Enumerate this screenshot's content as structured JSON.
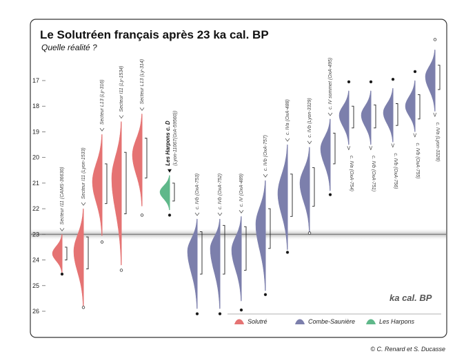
{
  "title": "Le Solutréen français après 23 ka cal. BP",
  "subtitle": "Quelle réalité ?",
  "credit": "© C. Renard et S. Ducasse",
  "chart_data": {
    "type": "area",
    "y_unit_label": "ka cal. BP",
    "y_ticks": [
      17,
      18,
      19,
      20,
      21,
      22,
      23,
      24,
      25,
      26
    ],
    "ylim": [
      16.2,
      26.4
    ],
    "y_inverted": true,
    "highlight_line": 23,
    "grid": false,
    "legend_position": "bottom-right",
    "groups": [
      {
        "key": "solutre",
        "name": "Solutré",
        "color": "#e57373"
      },
      {
        "key": "combe",
        "name": "Combe-Saunière",
        "color": "#7c7fac"
      },
      {
        "key": "harpons",
        "name": "Les Harpons",
        "color": "#5fb88a"
      }
    ],
    "samples": [
      {
        "label": "Secteur I11 (CAMS-36630)",
        "group": "solutre",
        "mode": 23.75,
        "top": 23.0,
        "bottom": 24.5,
        "range": [
          23.5,
          24.0
        ],
        "outlier": 24.55,
        "outlier_filled": true,
        "arrow": true
      },
      {
        "label": "Secteur I11 (Lyon-1533)",
        "group": "solutre",
        "mode": 23.65,
        "top": 22.0,
        "bottom": 25.8,
        "range": [
          23.1,
          24.35
        ],
        "outlier": 25.85,
        "outlier_filled": false,
        "arrow": true
      },
      {
        "label": "Secteur L13 (Ly-316)",
        "group": "solutre",
        "mode": 20.95,
        "top": 19.1,
        "bottom": 23.05,
        "range": [
          20.25,
          21.8
        ],
        "outlier": 23.3,
        "outlier_filled": false,
        "arrow": true
      },
      {
        "label": "Secteur I11 (Ly-1534)",
        "group": "solutre",
        "mode": 20.8,
        "top": 18.6,
        "bottom": 24.2,
        "range": [
          19.8,
          22.2
        ],
        "outlier": 24.4,
        "outlier_filled": false,
        "arrow": true
      },
      {
        "label": "Secteur L13 (Ly-314)",
        "group": "solutre",
        "mode": 19.9,
        "top": 18.3,
        "bottom": 21.9,
        "range": [
          19.25,
          20.8
        ],
        "outlier": 22.25,
        "outlier_filled": false,
        "arrow": true
      },
      {
        "label": "Les Harpons c. D",
        "sublabel": "(Lyon-11067(GrA-59560))",
        "group": "harpons",
        "mode": 21.35,
        "top": 20.7,
        "bottom": 22.05,
        "range": [
          21.0,
          21.7
        ],
        "outlier": 22.25,
        "outlier_filled": true,
        "arrow": true,
        "arrow_filled": true
      },
      {
        "label": "c. IVb (OxA-753)",
        "group": "combe",
        "mode": 23.65,
        "top": 22.4,
        "bottom": 25.9,
        "range": [
          22.9,
          24.55
        ],
        "outlier": 26.1,
        "outlier_filled": true,
        "arrow": true
      },
      {
        "label": "c. IVb (OxA-752)",
        "group": "combe",
        "mode": 23.55,
        "top": 22.4,
        "bottom": 25.9,
        "range": [
          22.65,
          24.55
        ],
        "outlier": 26.1,
        "outlier_filled": true,
        "arrow": true
      },
      {
        "label": "c. IV (OxA-489)",
        "group": "combe",
        "mode": 23.6,
        "top": 22.3,
        "bottom": 25.6,
        "range": [
          22.7,
          24.4
        ],
        "outlier": 25.95,
        "outlier_filled": true,
        "arrow": true
      },
      {
        "label": "c. IVb (OxA-757)",
        "group": "combe",
        "mode": 22.6,
        "top": 20.9,
        "bottom": 25.2,
        "range": [
          22.0,
          23.55
        ],
        "outlier": 25.35,
        "outlier_filled": true,
        "arrow": true
      },
      {
        "label": "c. IVa (OxA-488)",
        "group": "combe",
        "mode": 21.4,
        "top": 19.5,
        "bottom": 23.6,
        "range": [
          20.65,
          22.3
        ],
        "outlier": 23.7,
        "outlier_filled": true,
        "arrow": true
      },
      {
        "label": "c. IVb (Lyon-3329)",
        "group": "combe",
        "mode": 21.0,
        "top": 19.6,
        "bottom": 22.9,
        "range": [
          20.4,
          21.9
        ],
        "outlier": 22.95,
        "outlier_filled": false,
        "arrow": true
      },
      {
        "label": "c. IV sommet (OxA-495)",
        "group": "combe",
        "mode": 19.65,
        "top": 18.5,
        "bottom": 21.3,
        "range": [
          19.05,
          20.25
        ],
        "outlier": 21.45,
        "outlier_filled": true,
        "arrow": true
      },
      {
        "label": "c. IVa (OxA-754)",
        "group": "combe",
        "mode": 18.35,
        "top": 17.4,
        "bottom": 19.5,
        "range": [
          18.0,
          18.85
        ],
        "outlier": 17.05,
        "outlier_filled": true,
        "arrow": true,
        "arrow_below": true
      },
      {
        "label": "c. IVb (OxA-751)",
        "group": "combe",
        "mode": 18.35,
        "top": 17.4,
        "bottom": 19.5,
        "range": [
          17.95,
          18.85
        ],
        "outlier": 17.05,
        "outlier_filled": true,
        "arrow": true,
        "arrow_below": true
      },
      {
        "label": "c. IVb (OxA-756)",
        "group": "combe",
        "mode": 18.25,
        "top": 17.3,
        "bottom": 19.4,
        "range": [
          17.9,
          18.75
        ],
        "outlier": 16.95,
        "outlier_filled": true,
        "arrow": true,
        "arrow_below": true
      },
      {
        "label": "c. IVb (OxA-755)",
        "group": "combe",
        "mode": 18.0,
        "top": 17.0,
        "bottom": 19.0,
        "range": [
          17.55,
          18.5
        ],
        "outlier": 16.65,
        "outlier_filled": true,
        "arrow": true,
        "arrow_below": true
      },
      {
        "label": "c. IVa (Lyon-3328)",
        "group": "combe",
        "mode": 16.85,
        "top": 15.8,
        "bottom": 18.2,
        "range": [
          16.4,
          17.35
        ],
        "outlier": 15.4,
        "outlier_filled": false,
        "arrow": true,
        "arrow_below": true
      }
    ]
  }
}
